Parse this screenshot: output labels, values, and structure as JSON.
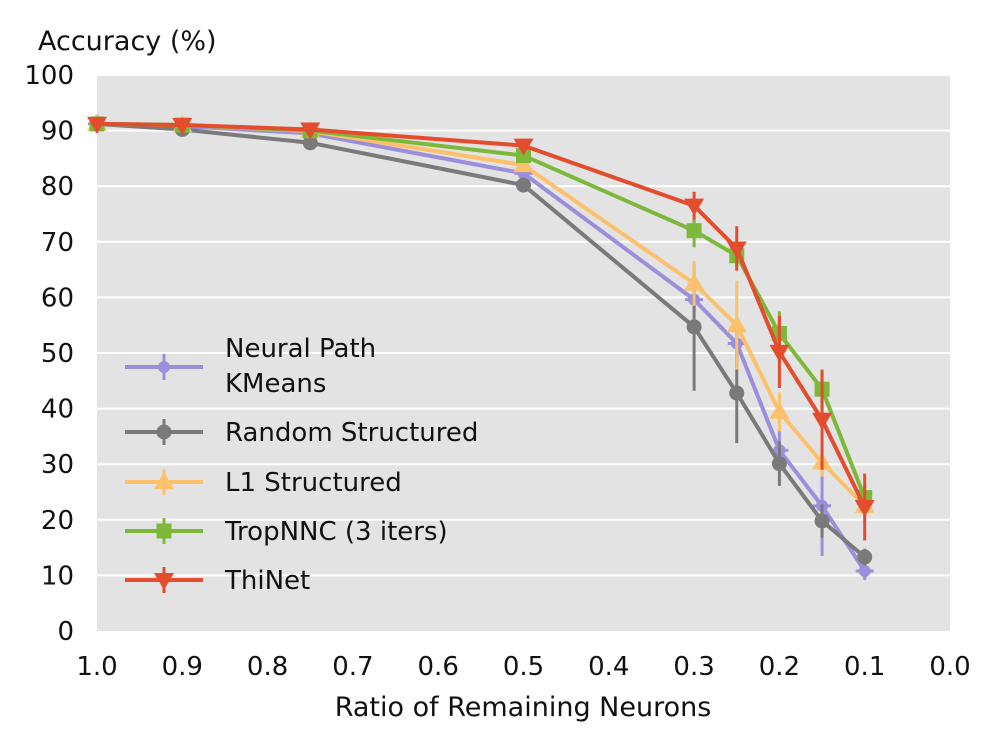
{
  "chart_data": {
    "type": "line",
    "title": "",
    "ylabel": "Accuracy (%)",
    "xlabel": "Ratio of Remaining Neurons",
    "xlim": [
      1.0,
      0.0
    ],
    "ylim": [
      0,
      100
    ],
    "x_ticks": [
      "1.0",
      "0.9",
      "0.8",
      "0.7",
      "0.6",
      "0.5",
      "0.4",
      "0.3",
      "0.2",
      "0.1",
      "0.0"
    ],
    "y_ticks": [
      "0",
      "10",
      "20",
      "30",
      "40",
      "50",
      "60",
      "70",
      "80",
      "90",
      "100"
    ],
    "grid": true,
    "legend_position": "left-center",
    "series": [
      {
        "name": "Neural Path\nKMeans",
        "color": "#9b8fdc",
        "marker": "plus",
        "x": [
          1.0,
          0.9,
          0.75,
          0.5,
          0.3,
          0.25,
          0.2,
          0.15,
          0.1
        ],
        "y": [
          91.2,
          90.8,
          89.5,
          82.3,
          59.6,
          51.7,
          32.5,
          22.5,
          10.8
        ],
        "err": [
          0.3,
          0.5,
          0.5,
          0.8,
          2.0,
          4.0,
          3.5,
          9.0,
          1.5
        ]
      },
      {
        "name": "Random Structured",
        "color": "#7a7a7a",
        "marker": "circle",
        "x": [
          1.0,
          0.9,
          0.75,
          0.5,
          0.3,
          0.25,
          0.2,
          0.15,
          0.1
        ],
        "y": [
          91.2,
          90.2,
          87.8,
          80.2,
          54.7,
          42.8,
          30.1,
          19.8,
          13.3
        ],
        "err": [
          0.3,
          0.5,
          0.7,
          1.0,
          11.5,
          9.0,
          4.0,
          3.0,
          1.5
        ]
      },
      {
        "name": "L1 Structured",
        "color": "#fdc06b",
        "marker": "triangle-up",
        "x": [
          1.0,
          0.9,
          0.75,
          0.5,
          0.3,
          0.25,
          0.2,
          0.15,
          0.1
        ],
        "y": [
          91.2,
          91.0,
          89.9,
          83.8,
          62.5,
          55.0,
          39.4,
          30.3,
          22.5
        ],
        "err": [
          0.3,
          0.4,
          0.5,
          0.8,
          4.0,
          8.0,
          3.5,
          2.5,
          1.5
        ]
      },
      {
        "name": "TropNNC (3 iters)",
        "color": "#7db83a",
        "marker": "square",
        "x": [
          1.0,
          0.9,
          0.75,
          0.5,
          0.3,
          0.25,
          0.2,
          0.15,
          0.1
        ],
        "y": [
          91.2,
          91.0,
          90.0,
          85.5,
          72.0,
          67.5,
          53.5,
          43.5,
          24.0
        ],
        "err": [
          0.3,
          0.4,
          0.5,
          0.8,
          3.0,
          2.0,
          4.0,
          3.5,
          2.5
        ]
      },
      {
        "name": "ThiNet",
        "color": "#e44c2e",
        "marker": "triangle-down",
        "x": [
          1.0,
          0.9,
          0.75,
          0.5,
          0.3,
          0.25,
          0.2,
          0.15,
          0.1
        ],
        "y": [
          91.2,
          91.0,
          90.2,
          87.3,
          76.5,
          68.8,
          50.2,
          38.0,
          22.3
        ],
        "err": [
          0.3,
          0.3,
          0.4,
          0.6,
          2.5,
          4.0,
          6.5,
          9.0,
          6.0
        ]
      }
    ]
  }
}
